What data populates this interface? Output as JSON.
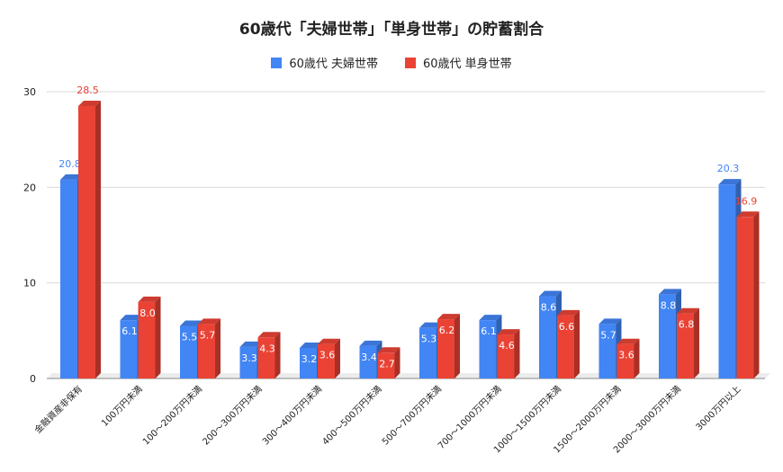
{
  "chart_data": {
    "type": "bar",
    "title": "60歳代「夫婦世帯」「単身世帯」の貯蓄割合",
    "xlabel": "",
    "ylabel": "",
    "ylim": [
      0,
      30
    ],
    "yticks": [
      0,
      10,
      20,
      30
    ],
    "grid": true,
    "legend_position": "top",
    "categories": [
      "金融資産非保有",
      "100万円未満",
      "100～200万円未満",
      "200～300万円未満",
      "300～400万円未満",
      "400～500万円未満",
      "500～700万円未満",
      "700～1000万円未満",
      "1000～1500万円未満",
      "1500～2000万円未満",
      "2000～3000万円未満",
      "3000万円以上"
    ],
    "series": [
      {
        "name": "60歳代 夫婦世帯",
        "color": "#4285f4",
        "values": [
          20.8,
          6.1,
          5.5,
          3.3,
          3.2,
          3.4,
          5.3,
          6.1,
          8.6,
          5.7,
          8.8,
          20.3
        ]
      },
      {
        "name": "60歳代 単身世帯",
        "color": "#ea4335",
        "values": [
          28.5,
          8.0,
          5.7,
          4.3,
          3.6,
          2.7,
          6.2,
          4.6,
          6.6,
          3.6,
          6.8,
          16.9
        ]
      }
    ]
  }
}
